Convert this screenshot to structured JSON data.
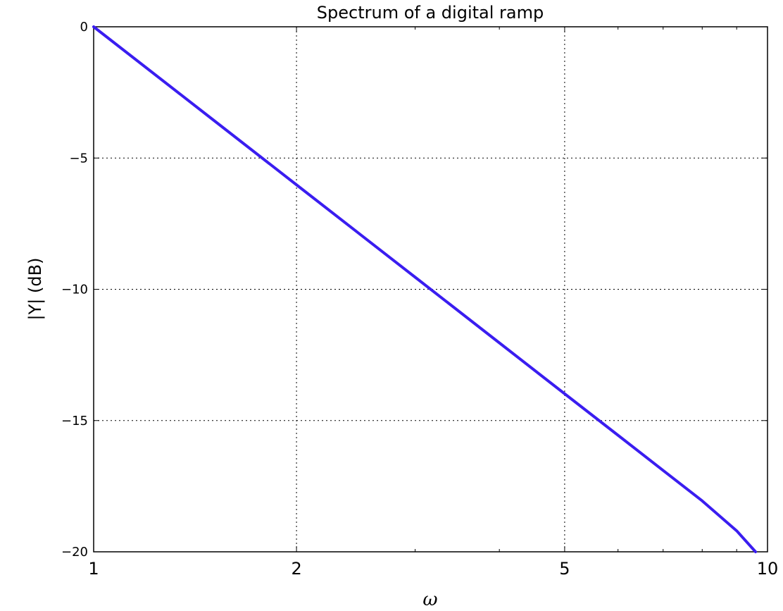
{
  "chart_data": {
    "type": "line",
    "title": "Spectrum of a digital ramp",
    "xlabel": "ω",
    "ylabel": "|Y| (dB)",
    "xscale": "log",
    "xlim": [
      1,
      10
    ],
    "ylim": [
      -20,
      0
    ],
    "xticks": [
      1,
      2,
      5,
      10
    ],
    "xtick_labels": [
      "1",
      "2",
      "5",
      "10"
    ],
    "yticks": [
      0,
      -5,
      -10,
      -15,
      -20
    ],
    "ytick_labels": [
      "0",
      "−5",
      "−10",
      "−15",
      "−20"
    ],
    "grid": true,
    "series": [
      {
        "color": "#3a1df0",
        "x": [
          1,
          1.5,
          2,
          3,
          4,
          5,
          6,
          7,
          8,
          9,
          9.6
        ],
        "y": [
          0,
          -3.52,
          -6.02,
          -9.54,
          -12.04,
          -13.98,
          -15.56,
          -16.9,
          -18.06,
          -19.2,
          -20
        ]
      }
    ]
  }
}
